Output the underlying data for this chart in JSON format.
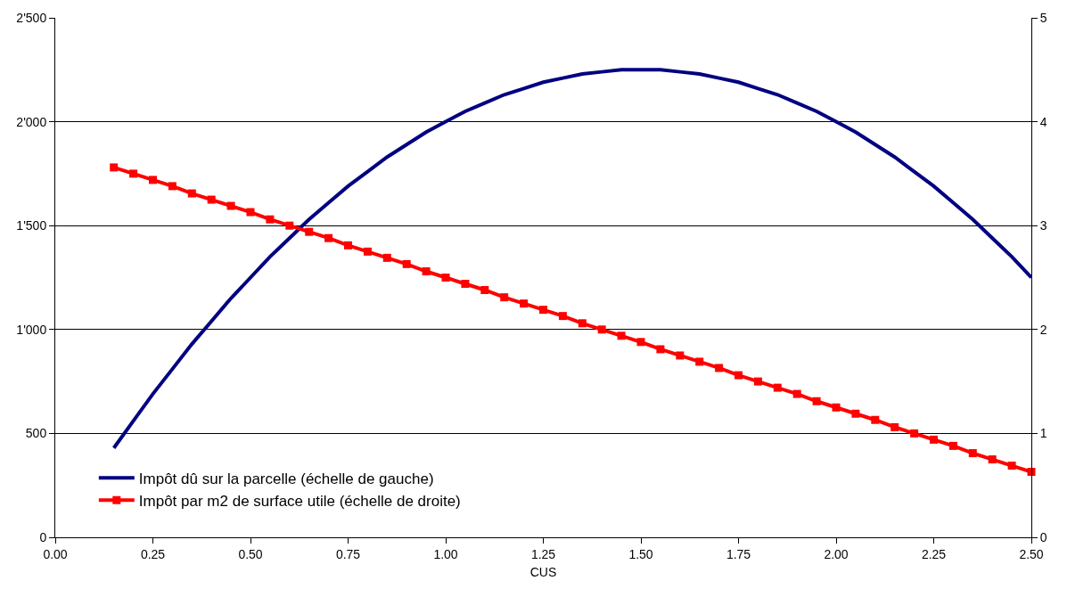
{
  "chart_data": {
    "type": "line",
    "xlabel": "CUS",
    "x": [
      0.15,
      0.2,
      0.25,
      0.3,
      0.35,
      0.4,
      0.45,
      0.5,
      0.55,
      0.6,
      0.65,
      0.7,
      0.75,
      0.8,
      0.85,
      0.9,
      0.95,
      1.0,
      1.05,
      1.1,
      1.15,
      1.2,
      1.25,
      1.3,
      1.35,
      1.4,
      1.45,
      1.5,
      1.55,
      1.6,
      1.65,
      1.7,
      1.75,
      1.8,
      1.85,
      1.9,
      1.95,
      2.0,
      2.05,
      2.1,
      2.15,
      2.2,
      2.25,
      2.3,
      2.35,
      2.4,
      2.45,
      2.5
    ],
    "series": [
      {
        "name": "Impôt dû sur la parcelle (échelle de gauche)",
        "color": "#000080",
        "marker": "none",
        "values": [
          430,
          560,
          690,
          810,
          930,
          1040,
          1150,
          1250,
          1350,
          1440,
          1530,
          1610,
          1690,
          1760,
          1830,
          1890,
          1950,
          2000,
          2050,
          2090,
          2130,
          2160,
          2190,
          2210,
          2230,
          2240,
          2250,
          2250,
          2250,
          2240,
          2230,
          2210,
          2190,
          2160,
          2130,
          2090,
          2050,
          2000,
          1950,
          1890,
          1830,
          1760,
          1690,
          1610,
          1530,
          1440,
          1350,
          1250
        ]
      },
      {
        "name": "Impôt par m2 de surface utile (échelle de droite)",
        "color": "#ff0000",
        "marker": "square",
        "axis": "y2",
        "values": [
          3.56,
          3.5,
          3.44,
          3.38,
          3.31,
          3.25,
          3.19,
          3.13,
          3.06,
          3.0,
          2.94,
          2.88,
          2.81,
          2.75,
          2.69,
          2.63,
          2.56,
          2.5,
          2.44,
          2.38,
          2.31,
          2.25,
          2.19,
          2.13,
          2.06,
          2.0,
          1.94,
          1.88,
          1.81,
          1.75,
          1.69,
          1.63,
          1.56,
          1.5,
          1.44,
          1.38,
          1.31,
          1.25,
          1.19,
          1.13,
          1.06,
          1.0,
          0.94,
          0.88,
          0.81,
          0.75,
          0.69,
          0.63
        ]
      }
    ],
    "xlim": [
      0,
      2.5
    ],
    "xticks": [
      {
        "value": 0,
        "label": "0.00"
      },
      {
        "value": 0.25,
        "label": "0.25"
      },
      {
        "value": 0.5,
        "label": "0.50"
      },
      {
        "value": 0.75,
        "label": "0.75"
      },
      {
        "value": 1,
        "label": "1.00"
      },
      {
        "value": 1.25,
        "label": "1.25"
      },
      {
        "value": 1.5,
        "label": "1.50"
      },
      {
        "value": 1.75,
        "label": "1.75"
      },
      {
        "value": 2,
        "label": "2.00"
      },
      {
        "value": 2.25,
        "label": "2.25"
      },
      {
        "value": 2.5,
        "label": "2.50"
      }
    ],
    "ylim": [
      0,
      2500
    ],
    "yticks": [
      0,
      500,
      {
        "value": 1000,
        "label": "1'000"
      },
      {
        "value": 1500,
        "label": "1'500"
      },
      {
        "value": 2000,
        "label": "2'000"
      },
      {
        "value": 2500,
        "label": "2'500"
      }
    ],
    "y2lim": [
      0,
      5
    ],
    "y2ticks": [
      0,
      1,
      2,
      3,
      4,
      5
    ],
    "grid": "y",
    "legend": "bottom left",
    "line_style": "solid"
  }
}
